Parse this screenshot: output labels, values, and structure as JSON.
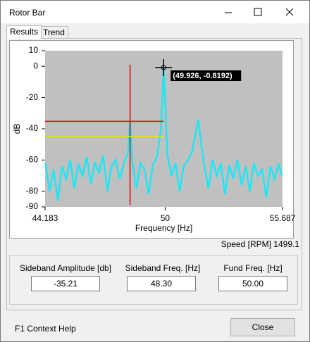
{
  "window": {
    "title": "Rotor Bar",
    "tabs": [
      "Results",
      "Trend"
    ]
  },
  "chart_data": {
    "type": "line",
    "xlabel": "Frequency [Hz]",
    "ylabel": "dB",
    "xlim": [
      44.183,
      55.687
    ],
    "ylim": [
      -90,
      10
    ],
    "xticks": [
      44.183,
      50,
      55.687
    ],
    "yticks": [
      10,
      0,
      -20,
      -40,
      -60,
      -80,
      -90
    ],
    "grid": false,
    "x": [
      44.2,
      44.4,
      44.6,
      44.8,
      45.0,
      45.2,
      45.4,
      45.6,
      45.8,
      46.0,
      46.2,
      46.4,
      46.6,
      46.8,
      47.0,
      47.2,
      47.4,
      47.6,
      47.8,
      48.0,
      48.2,
      48.3,
      48.4,
      48.6,
      48.8,
      49.0,
      49.2,
      49.4,
      49.6,
      49.8,
      49.926,
      50.0,
      50.1,
      50.3,
      50.5,
      50.7,
      50.9,
      51.1,
      51.3,
      51.45,
      51.6,
      51.75,
      51.9,
      52.1,
      52.3,
      52.5,
      52.7,
      52.9,
      53.1,
      53.3,
      53.5,
      53.7,
      53.9,
      54.1,
      54.3,
      54.5,
      54.7,
      54.9,
      55.1,
      55.3,
      55.5,
      55.65
    ],
    "series": [
      {
        "color": "#1ee6f5",
        "values": [
          -62,
          -80,
          -66,
          -86,
          -64,
          -72,
          -60,
          -78,
          -63,
          -70,
          -58,
          -75,
          -62,
          -68,
          -57,
          -80,
          -64,
          -60,
          -72,
          -62,
          -55,
          -35,
          -60,
          -78,
          -62,
          -66,
          -82,
          -63,
          -58,
          -40,
          -0.8192,
          -20,
          -56,
          -70,
          -62,
          -80,
          -64,
          -60,
          -55,
          -45,
          -34,
          -50,
          -64,
          -78,
          -60,
          -70,
          -62,
          -82,
          -63,
          -72,
          -60,
          -76,
          -64,
          -80,
          -62,
          -70,
          -66,
          -84,
          -64,
          -72,
          -62,
          -70
        ]
      }
    ],
    "cursor": {
      "x": 49.926,
      "y": -0.8192,
      "label": "(49.926, -0.8192)"
    },
    "sideband_marker": {
      "x": 48.3,
      "y": -35.21,
      "color": "#e00000"
    },
    "reference_line": {
      "y": -45,
      "color": "#e8e800"
    }
  },
  "speed": {
    "label": "Speed [RPM]",
    "value": "1499.1"
  },
  "fields": [
    {
      "label": "Sideband Amplitude [db]",
      "value": "-35.21"
    },
    {
      "label": "Sideband Freq. [Hz]",
      "value": "48.30"
    },
    {
      "label": "Fund Freq. [Hz]",
      "value": "50.00"
    }
  ],
  "footer": {
    "help": "F1 Context Help",
    "button": "Close"
  }
}
